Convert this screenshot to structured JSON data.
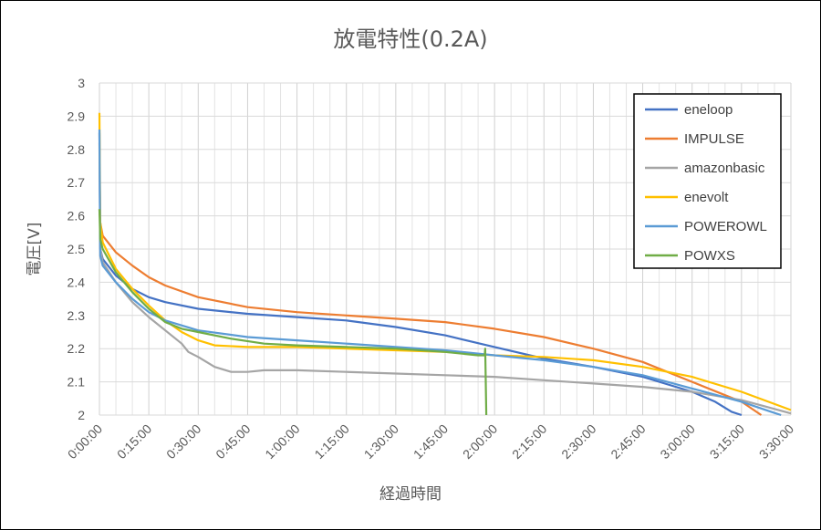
{
  "chart_data": {
    "type": "line",
    "title": "放電特性(0.2A)",
    "xlabel": "経過時間",
    "ylabel": "電圧[V]",
    "xlim": [
      "0:00:00",
      "3:30:00"
    ],
    "ylim": [
      2,
      3
    ],
    "x_major_ticks": [
      "0:00:00",
      "0:15:00",
      "0:30:00",
      "0:45:00",
      "1:00:00",
      "1:15:00",
      "1:30:00",
      "1:45:00",
      "2:00:00",
      "2:15:00",
      "2:30:00",
      "2:45:00",
      "3:00:00",
      "3:15:00",
      "3:30:00"
    ],
    "y_ticks": [
      "2",
      "2.1",
      "2.2",
      "2.3",
      "2.4",
      "2.5",
      "2.6",
      "2.7",
      "2.8",
      "2.9",
      "3"
    ],
    "grid": true,
    "legend_position": "top-right",
    "series": [
      {
        "name": "eneloop",
        "color": "#4472C4",
        "x": [
          "0:00:00",
          "0:00:15",
          "0:01:00",
          "0:05:00",
          "0:10:00",
          "0:15:00",
          "0:20:00",
          "0:30:00",
          "0:45:00",
          "1:00:00",
          "1:15:00",
          "1:30:00",
          "1:45:00",
          "2:00:00",
          "2:15:00",
          "2:30:00",
          "2:45:00",
          "3:00:00",
          "3:07:00",
          "3:12:00",
          "3:15:00"
        ],
        "y": [
          2.85,
          2.5,
          2.47,
          2.42,
          2.38,
          2.355,
          2.34,
          2.32,
          2.305,
          2.295,
          2.285,
          2.265,
          2.24,
          2.205,
          2.17,
          2.145,
          2.115,
          2.07,
          2.04,
          2.01,
          2.0
        ]
      },
      {
        "name": "IMPULSE",
        "color": "#ED7D31",
        "x": [
          "0:00:00",
          "0:00:15",
          "0:01:00",
          "0:05:00",
          "0:10:00",
          "0:15:00",
          "0:20:00",
          "0:30:00",
          "0:45:00",
          "1:00:00",
          "1:15:00",
          "1:30:00",
          "1:45:00",
          "2:00:00",
          "2:15:00",
          "2:30:00",
          "2:45:00",
          "3:00:00",
          "3:10:00",
          "3:15:00",
          "3:21:00"
        ],
        "y": [
          2.62,
          2.58,
          2.54,
          2.49,
          2.45,
          2.415,
          2.39,
          2.355,
          2.325,
          2.31,
          2.3,
          2.29,
          2.28,
          2.26,
          2.235,
          2.2,
          2.16,
          2.1,
          2.06,
          2.04,
          2.0
        ]
      },
      {
        "name": "amazonbasic",
        "color": "#A5A5A5",
        "x": [
          "0:00:00",
          "0:00:15",
          "0:01:00",
          "0:05:00",
          "0:10:00",
          "0:15:00",
          "0:20:00",
          "0:25:00",
          "0:27:00",
          "0:30:00",
          "0:35:00",
          "0:40:00",
          "0:45:00",
          "0:50:00",
          "1:00:00",
          "1:15:00",
          "1:30:00",
          "1:45:00",
          "2:00:00",
          "2:15:00",
          "2:30:00",
          "2:45:00",
          "3:00:00",
          "3:15:00",
          "3:30:00"
        ],
        "y": [
          2.82,
          2.5,
          2.46,
          2.4,
          2.34,
          2.295,
          2.255,
          2.215,
          2.19,
          2.175,
          2.145,
          2.13,
          2.13,
          2.135,
          2.135,
          2.13,
          2.125,
          2.12,
          2.115,
          2.105,
          2.095,
          2.085,
          2.07,
          2.045,
          2.005
        ]
      },
      {
        "name": "enevolt",
        "color": "#FFC000",
        "x": [
          "0:00:00",
          "0:00:15",
          "0:01:00",
          "0:05:00",
          "0:10:00",
          "0:15:00",
          "0:20:00",
          "0:25:00",
          "0:30:00",
          "0:35:00",
          "0:45:00",
          "1:00:00",
          "1:15:00",
          "1:30:00",
          "1:45:00",
          "2:00:00",
          "2:15:00",
          "2:30:00",
          "2:45:00",
          "3:00:00",
          "3:15:00",
          "3:30:00"
        ],
        "y": [
          2.91,
          2.58,
          2.52,
          2.44,
          2.38,
          2.33,
          2.285,
          2.25,
          2.225,
          2.21,
          2.205,
          2.205,
          2.2,
          2.195,
          2.19,
          2.18,
          2.175,
          2.165,
          2.145,
          2.115,
          2.07,
          2.015
        ]
      },
      {
        "name": "POWEROWL",
        "color": "#5B9BD5",
        "x": [
          "0:00:00",
          "0:00:15",
          "0:01:00",
          "0:05:00",
          "0:10:00",
          "0:15:00",
          "0:20:00",
          "0:30:00",
          "0:45:00",
          "1:00:00",
          "1:15:00",
          "1:30:00",
          "1:45:00",
          "2:00:00",
          "2:15:00",
          "2:30:00",
          "2:45:00",
          "3:00:00",
          "3:15:00",
          "3:24:00",
          "3:27:00"
        ],
        "y": [
          2.86,
          2.48,
          2.45,
          2.4,
          2.35,
          2.31,
          2.285,
          2.255,
          2.235,
          2.225,
          2.215,
          2.205,
          2.195,
          2.18,
          2.165,
          2.145,
          2.12,
          2.08,
          2.04,
          2.01,
          2.0
        ]
      },
      {
        "name": "POWXS",
        "color": "#70AD47",
        "x": [
          "0:00:00",
          "0:00:15",
          "0:01:00",
          "0:05:00",
          "0:10:00",
          "0:15:00",
          "0:20:00",
          "0:25:00",
          "0:30:00",
          "0:40:00",
          "0:50:00",
          "1:00:00",
          "1:15:00",
          "1:30:00",
          "1:45:00",
          "1:55:00",
          "1:57:00",
          "1:57:10",
          "1:57:30"
        ],
        "y": [
          2.62,
          2.53,
          2.5,
          2.43,
          2.37,
          2.32,
          2.28,
          2.26,
          2.25,
          2.23,
          2.215,
          2.21,
          2.205,
          2.2,
          2.19,
          2.18,
          2.18,
          2.2,
          2.0
        ]
      }
    ]
  }
}
